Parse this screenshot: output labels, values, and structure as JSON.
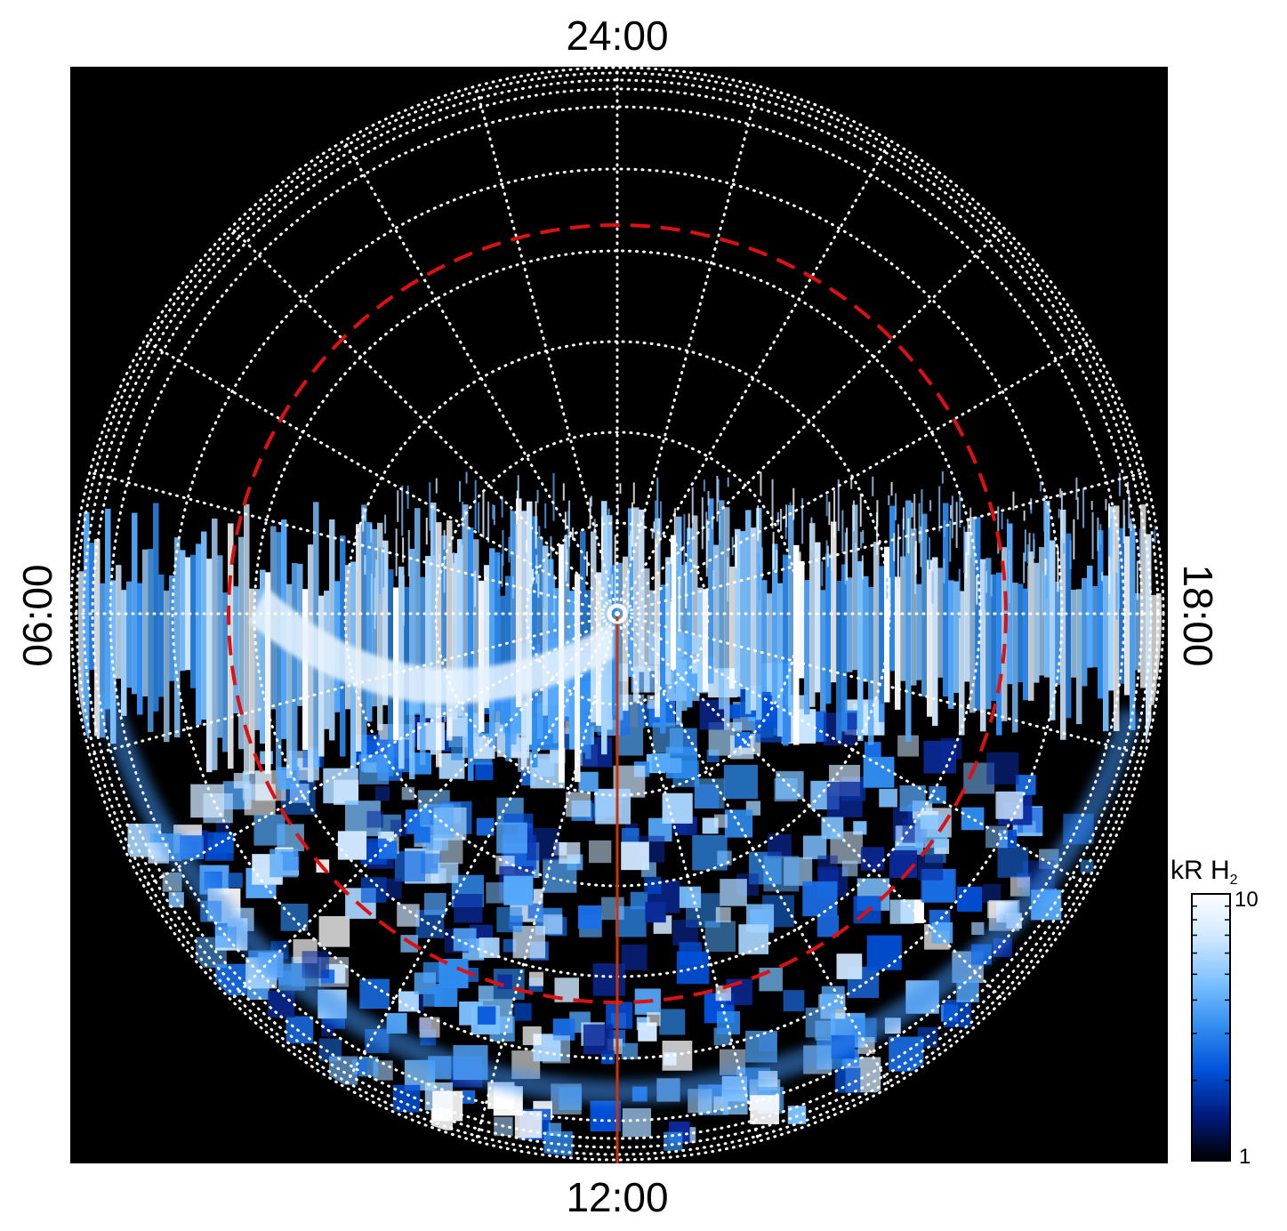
{
  "chart_data": {
    "type": "polar-projection",
    "local_time_labels": {
      "top": "24:00",
      "bottom": "12:00",
      "left": "06:00",
      "right": "18:00"
    },
    "colorbar": {
      "unit": "kR H",
      "unit_subscript": "2",
      "max_label": "10",
      "min_label": "1",
      "scale": "log",
      "range": [
        1,
        10
      ],
      "colors": [
        "#000000",
        "#001a7a",
        "#0050d8",
        "#2f8cf0",
        "#7cc0ff",
        "#cfe7ff",
        "#ffffff"
      ]
    },
    "grid": {
      "style": "dotted",
      "color": "#ffffff",
      "meridians_per_circle": 24
    },
    "reference_circle": {
      "style": "dashed",
      "color": "#dd1111"
    },
    "meridian_line": {
      "direction": "toward 12:00",
      "color": "#cc3300"
    },
    "pole_marker": {
      "color": "#ffffff"
    },
    "background_color": "#000000"
  }
}
